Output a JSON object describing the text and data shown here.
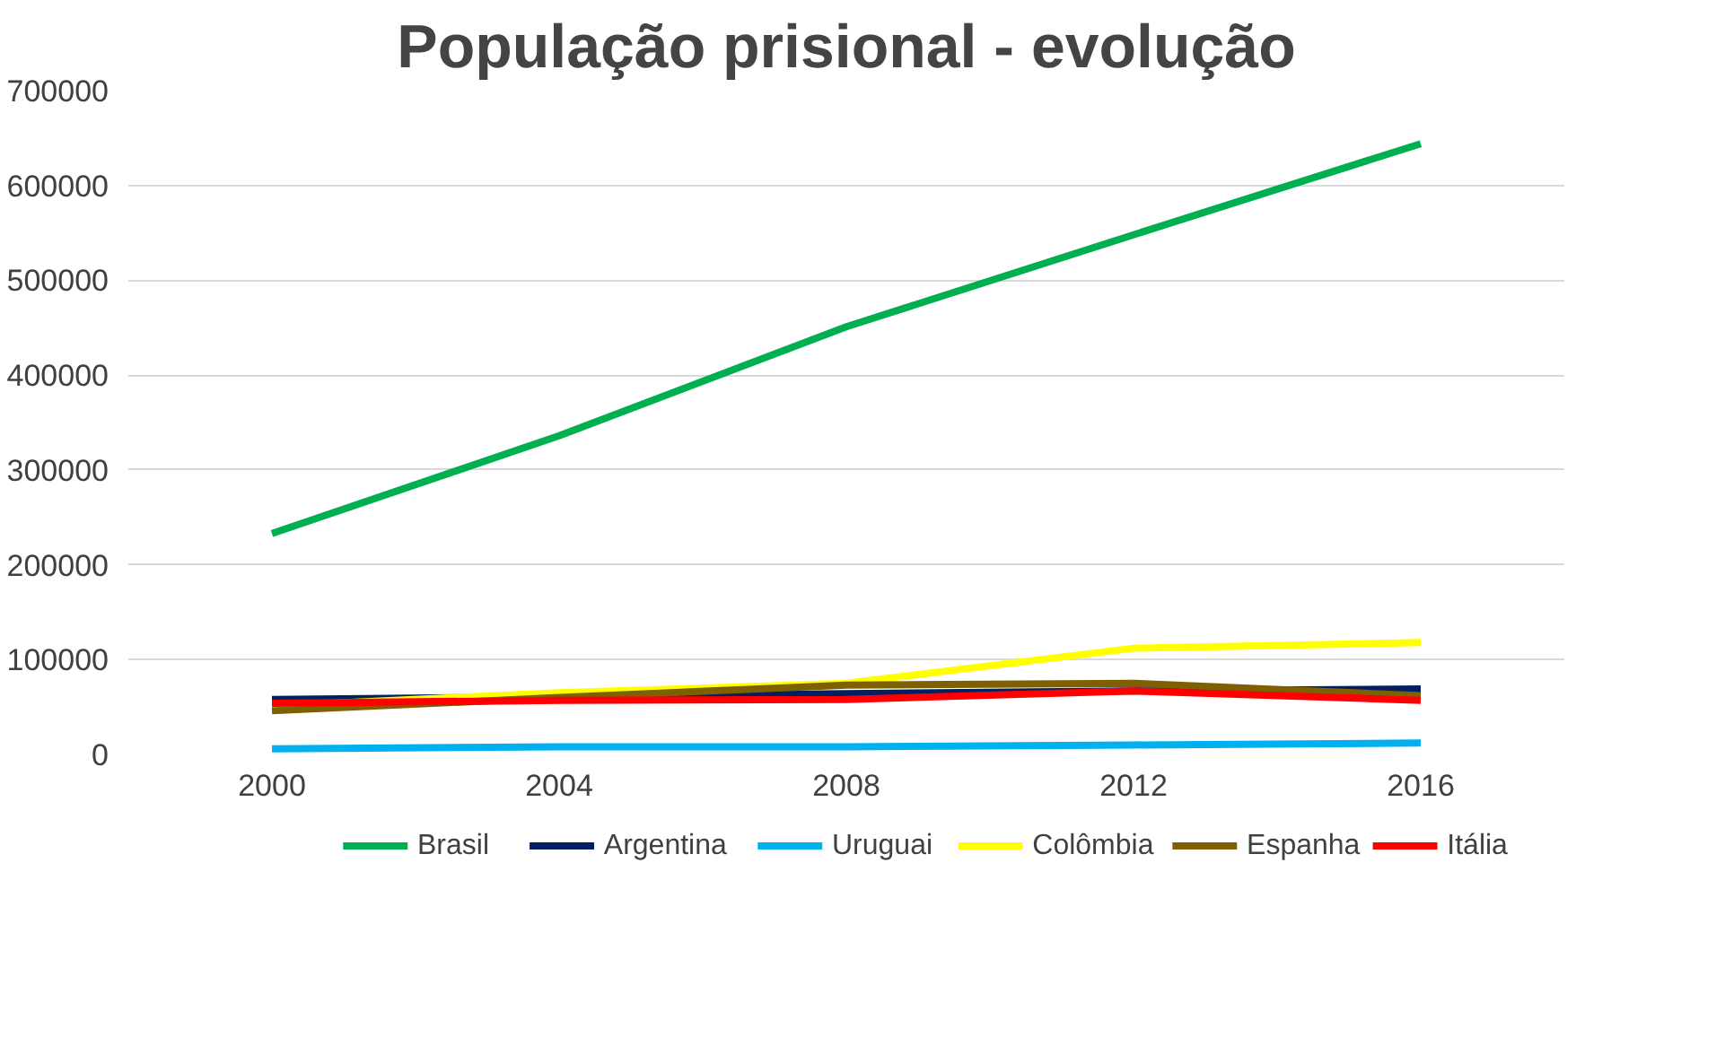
{
  "chart_data": {
    "type": "line",
    "title": "População prisional - evolução",
    "categories": [
      "2000",
      "2004",
      "2008",
      "2012",
      "2016"
    ],
    "ylim": [
      0,
      700000
    ],
    "yticks": [
      0,
      100000,
      200000,
      300000,
      400000,
      500000,
      600000,
      700000
    ],
    "grid": "y",
    "legend": "bottom",
    "series": [
      {
        "name": "Brasil",
        "color": "#00b050",
        "values": [
          233000,
          336000,
          451000,
          548000,
          644000
        ]
      },
      {
        "name": "Argentina",
        "color": "#002060",
        "values": [
          58000,
          61000,
          64000,
          67000,
          69000
        ]
      },
      {
        "name": "Uruguai",
        "color": "#00b0f0",
        "values": [
          6000,
          8000,
          8000,
          10000,
          12000
        ]
      },
      {
        "name": "Colômbia",
        "color": "#ffff00",
        "values": [
          51000,
          65000,
          75000,
          112000,
          118000
        ]
      },
      {
        "name": "Espanha",
        "color": "#7f6000",
        "values": [
          46000,
          60000,
          73000,
          75000,
          62000
        ]
      },
      {
        "name": "Itália",
        "color": "#ff0000",
        "values": [
          54000,
          57000,
          58000,
          67000,
          57000
        ]
      }
    ]
  }
}
